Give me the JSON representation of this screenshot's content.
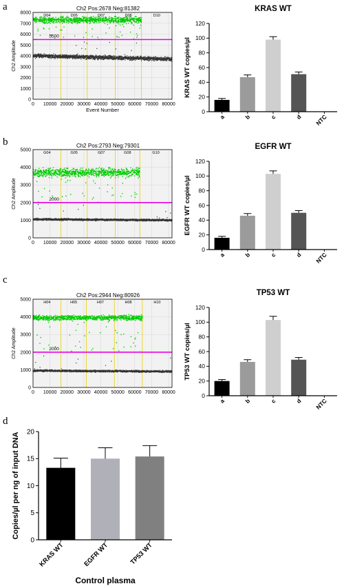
{
  "panels": {
    "a": {
      "letter": "a"
    },
    "b": {
      "letter": "b"
    },
    "c": {
      "letter": "c"
    },
    "d": {
      "letter": "d"
    }
  },
  "chart_data": [
    {
      "id": "ddpcr-a",
      "type": "scatter",
      "title": "Ch2 Pos:2678 Neg:81382",
      "xlabel": "Event Number",
      "ylabel": "Ch2 Amplitude",
      "xlim": [
        0,
        82000
      ],
      "ylim": [
        0,
        8000
      ],
      "xticks": [
        0,
        10000,
        20000,
        30000,
        40000,
        50000,
        60000,
        70000,
        80000
      ],
      "yticks": [
        0,
        1000,
        2000,
        3000,
        4000,
        5000,
        6000,
        7000,
        8000
      ],
      "threshold": 5500,
      "threshold_label": "5500",
      "wells": [
        "D04",
        "D05",
        "D07",
        "D08",
        "D10"
      ],
      "well_bounds": [
        0,
        16500,
        32000,
        48500,
        64000,
        82000
      ],
      "positive_band": {
        "mean": 7300,
        "spread": 400,
        "x_end": 64000
      },
      "negative_band": {
        "mean_start": 4000,
        "mean_end": 3700,
        "spread": 250
      },
      "colors": {
        "positive": "#00cc00",
        "negative": "#333333",
        "threshold": "#e600e6",
        "divider": "#e8d000",
        "background": "#f2f2f2"
      }
    },
    {
      "id": "bar-a",
      "type": "bar",
      "title": "KRAS WT",
      "ylabel": "KRAS WT copies/µl",
      "categories": [
        "a",
        "b",
        "c",
        "d",
        "NTC"
      ],
      "values": [
        16,
        47,
        98,
        51,
        0
      ],
      "errors": [
        2,
        3,
        4,
        3,
        0
      ],
      "ylim": [
        0,
        120
      ],
      "yticks": [
        0,
        20,
        40,
        60,
        80,
        100,
        120
      ],
      "colors": [
        "#000000",
        "#9b9b9b",
        "#cfcfcf",
        "#555555",
        "#ffffff"
      ]
    },
    {
      "id": "ddpcr-b",
      "type": "scatter",
      "title": "Ch2 Pos:2793 Neg:79301",
      "xlabel": "",
      "ylabel": "Ch2 Amplitude",
      "xlim": [
        0,
        82000
      ],
      "ylim": [
        0,
        5000
      ],
      "xticks": [
        0,
        10000,
        20000,
        30000,
        40000,
        50000,
        60000,
        70000,
        80000
      ],
      "yticks": [
        0,
        1000,
        2000,
        3000,
        4000,
        5000
      ],
      "threshold": 2000,
      "threshold_label": "2000",
      "wells": [
        "G04",
        "G05",
        "G07",
        "G08",
        "G10"
      ],
      "well_bounds": [
        0,
        16500,
        32000,
        48500,
        63000,
        82000
      ],
      "positive_band": {
        "mean": 3700,
        "spread": 350,
        "x_end": 63000
      },
      "negative_band": {
        "mean_start": 1050,
        "mean_end": 1000,
        "spread": 80
      },
      "colors": {
        "positive": "#00cc00",
        "negative": "#333333",
        "threshold": "#e600e6",
        "divider": "#e8d000",
        "background": "#f2f2f2"
      }
    },
    {
      "id": "bar-b",
      "type": "bar",
      "title": "EGFR WT",
      "ylabel": "EGFR WT copies/µl",
      "categories": [
        "a",
        "b",
        "c",
        "d",
        "NTC"
      ],
      "values": [
        16,
        46,
        103,
        50,
        0
      ],
      "errors": [
        2,
        3,
        4,
        3,
        0
      ],
      "ylim": [
        0,
        120
      ],
      "yticks": [
        0,
        20,
        40,
        60,
        80,
        100,
        120
      ],
      "colors": [
        "#000000",
        "#9b9b9b",
        "#cfcfcf",
        "#555555",
        "#ffffff"
      ]
    },
    {
      "id": "ddpcr-c",
      "type": "scatter",
      "title": "Ch2 Pos:2944 Neg:80926",
      "xlabel": "",
      "ylabel": "Ch2 Amplitude",
      "xlim": [
        0,
        82000
      ],
      "ylim": [
        0,
        5000
      ],
      "xticks": [
        0,
        10000,
        20000,
        30000,
        40000,
        50000,
        60000,
        70000,
        80000
      ],
      "yticks": [
        0,
        1000,
        2000,
        3000,
        4000,
        5000
      ],
      "threshold": 2000,
      "threshold_label": "2000",
      "wells": [
        "H04",
        "H05",
        "H07",
        "H08",
        "H10"
      ],
      "well_bounds": [
        0,
        16500,
        31500,
        48000,
        64500,
        82000
      ],
      "positive_band": {
        "mean": 3950,
        "spread": 200,
        "x_end": 64500
      },
      "negative_band": {
        "mean_start": 950,
        "mean_end": 900,
        "spread": 80
      },
      "colors": {
        "positive": "#00cc00",
        "negative": "#333333",
        "threshold": "#e600e6",
        "divider": "#e8d000",
        "background": "#f2f2f2"
      }
    },
    {
      "id": "bar-c",
      "type": "bar",
      "title": "TP53 WT",
      "ylabel": "TP53 WT copies/µl",
      "categories": [
        "a",
        "b",
        "c",
        "d",
        "NTC"
      ],
      "values": [
        20,
        46,
        103,
        49,
        0
      ],
      "errors": [
        2,
        3,
        5,
        3,
        0
      ],
      "ylim": [
        0,
        120
      ],
      "yticks": [
        0,
        20,
        40,
        60,
        80,
        100,
        120
      ],
      "colors": [
        "#000000",
        "#9b9b9b",
        "#cfcfcf",
        "#555555",
        "#ffffff"
      ]
    },
    {
      "id": "bar-d",
      "type": "bar",
      "title": "",
      "xlabel": "Control plasma",
      "ylabel": "Copies/µl per ng of input DNA",
      "categories": [
        "KRAS WT",
        "EGFR WT",
        "TP53 WT"
      ],
      "values": [
        13.3,
        15.0,
        15.4
      ],
      "errors": [
        1.8,
        2.0,
        2.0
      ],
      "ylim": [
        0,
        20
      ],
      "yticks": [
        0,
        5,
        10,
        15,
        20
      ],
      "colors": [
        "#000000",
        "#b0b0b8",
        "#808080"
      ]
    }
  ]
}
